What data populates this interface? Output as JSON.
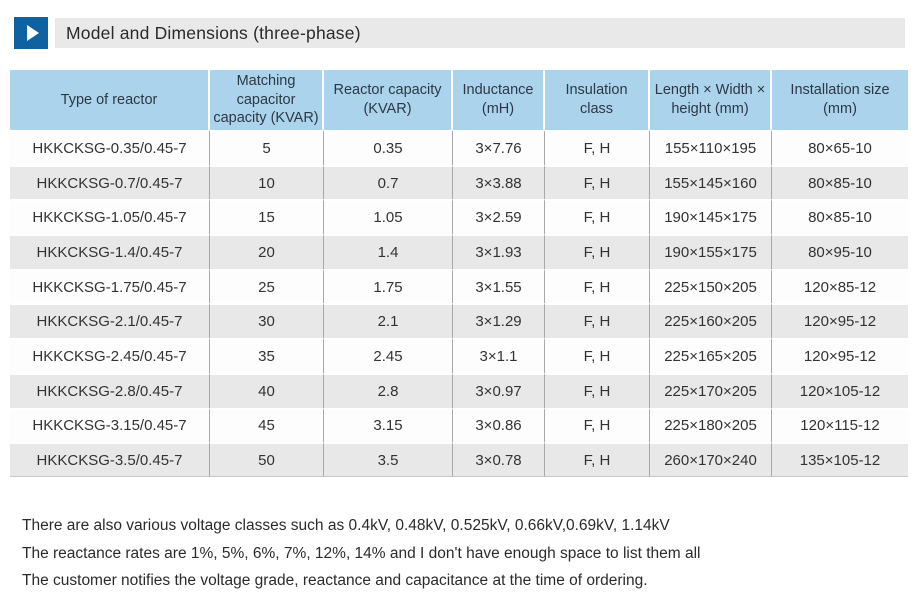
{
  "title": {
    "icon": "play-triangle-icon",
    "text": "Model and Dimensions (three-phase)"
  },
  "colors": {
    "accent_blue": "#10619f",
    "title_bar_bg": "#e9e9e9",
    "table_header_bg": "#abd3ec",
    "row_bg": "#fdfdfd",
    "row_alt_bg": "#e8e8e8",
    "grid_line": "#a9a9a9",
    "text": "#333333"
  },
  "table": {
    "headers": [
      "Type of reactor",
      "Matching capacitor capacity (KVAR)",
      "Reactor capacity (KVAR)",
      "Inductance (mH)",
      "Insulation class",
      "Length × Width × height (mm)",
      "Installation size (mm)"
    ],
    "rows": [
      [
        "HKKCKSG-0.35/0.45-7",
        "5",
        "0.35",
        "3×7.76",
        "F, H",
        "155×110×195",
        "80×65-10"
      ],
      [
        "HKKCKSG-0.7/0.45-7",
        "10",
        "0.7",
        "3×3.88",
        "F, H",
        "155×145×160",
        "80×85-10"
      ],
      [
        "HKKCKSG-1.05/0.45-7",
        "15",
        "1.05",
        "3×2.59",
        "F, H",
        "190×145×175",
        "80×85-10"
      ],
      [
        "HKKCKSG-1.4/0.45-7",
        "20",
        "1.4",
        "3×1.93",
        "F, H",
        "190×155×175",
        "80×95-10"
      ],
      [
        "HKKCKSG-1.75/0.45-7",
        "25",
        "1.75",
        "3×1.55",
        "F, H",
        "225×150×205",
        "120×85-12"
      ],
      [
        "HKKCKSG-2.1/0.45-7",
        "30",
        "2.1",
        "3×1.29",
        "F, H",
        "225×160×205",
        "120×95-12"
      ],
      [
        "HKKCKSG-2.45/0.45-7",
        "35",
        "2.45",
        "3×1.1",
        "F, H",
        "225×165×205",
        "120×95-12"
      ],
      [
        "HKKCKSG-2.8/0.45-7",
        "40",
        "2.8",
        "3×0.97",
        "F, H",
        "225×170×205",
        "120×105-12"
      ],
      [
        "HKKCKSG-3.15/0.45-7",
        "45",
        "3.15",
        "3×0.86",
        "F, H",
        "225×180×205",
        "120×115-12"
      ],
      [
        "HKKCKSG-3.5/0.45-7",
        "50",
        "3.5",
        "3×0.78",
        "F, H",
        "260×170×240",
        "135×105-12"
      ]
    ]
  },
  "notes": [
    "There are also various voltage classes such as 0.4kV, 0.48kV, 0.525kV, 0.66kV,0.69kV, 1.14kV",
    "The reactance rates are 1%, 5%, 6%, 7%, 12%, 14% and I don't have enough space to list them all",
    "The customer notifies the voltage grade, reactance and capacitance at the time of ordering."
  ]
}
